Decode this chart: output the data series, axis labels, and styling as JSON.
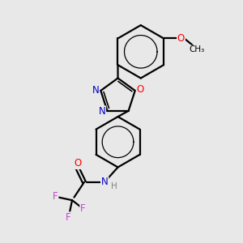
{
  "bg_color": "#e8e8e8",
  "bond_color": "#000000",
  "bond_width": 1.6,
  "atom_colors": {
    "N": "#0000cc",
    "O": "#ff0000",
    "F": "#cc44cc",
    "H": "#808080",
    "C": "#000000"
  },
  "font_size_atom": 8.5,
  "font_size_small": 7.5,
  "figsize": [
    3.0,
    3.0
  ],
  "dpi": 100
}
